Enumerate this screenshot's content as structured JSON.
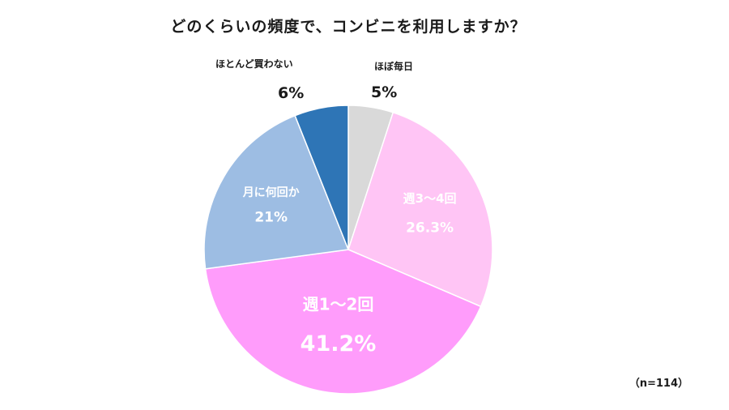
{
  "chart_data": {
    "type": "pie",
    "title": "どのくらいの頻度で、コンビニを利用しますか？",
    "sample_size": "（n=114）",
    "start_angle_deg": 0,
    "direction": "clockwise",
    "slices": [
      {
        "label": "ほぼ毎日",
        "value": 5,
        "value_label": "5%",
        "color": "#d9d9d9",
        "label_position": "outside"
      },
      {
        "label": "週3～4回",
        "value": 26.3,
        "value_label": "26.3%",
        "color": "#ffc5f5",
        "label_position": "inside"
      },
      {
        "label": "週1～2回",
        "value": 41.2,
        "value_label": "41.2%",
        "color": "#ff9cfb",
        "label_position": "inside"
      },
      {
        "label": "月に何回か",
        "value": 21,
        "value_label": "21%",
        "color": "#9dbde3",
        "label_position": "inside"
      },
      {
        "label": "ほとんど買わない",
        "value": 6,
        "value_label": "6%",
        "color": "#2e75b6",
        "label_position": "outside"
      }
    ]
  }
}
